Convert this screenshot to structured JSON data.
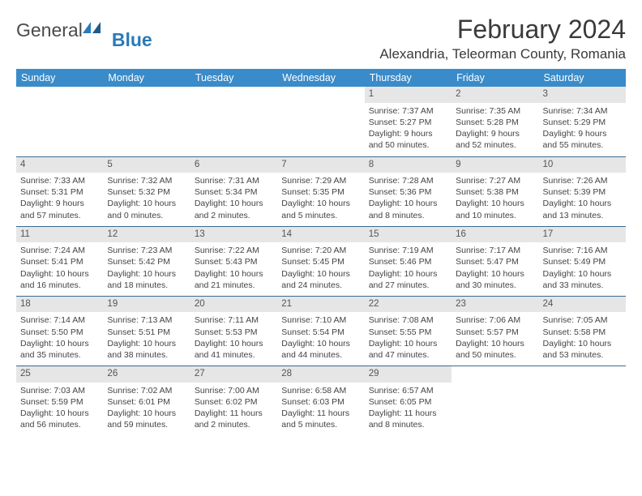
{
  "brand": {
    "part1": "General",
    "part2": "Blue"
  },
  "title": "February 2024",
  "location": "Alexandria, Teleorman County, Romania",
  "colors": {
    "header_bg": "#3a8bc9",
    "header_text": "#ffffff",
    "daynum_bg": "#e6e6e6",
    "row_border": "#3a6a92",
    "logo_blue": "#2a7ab8",
    "body_text": "#3a3a3a"
  },
  "weekdays": [
    "Sunday",
    "Monday",
    "Tuesday",
    "Wednesday",
    "Thursday",
    "Friday",
    "Saturday"
  ],
  "weeks": [
    [
      null,
      null,
      null,
      null,
      {
        "n": "1",
        "sr": "Sunrise: 7:37 AM",
        "ss": "Sunset: 5:27 PM",
        "dl": "Daylight: 9 hours and 50 minutes."
      },
      {
        "n": "2",
        "sr": "Sunrise: 7:35 AM",
        "ss": "Sunset: 5:28 PM",
        "dl": "Daylight: 9 hours and 52 minutes."
      },
      {
        "n": "3",
        "sr": "Sunrise: 7:34 AM",
        "ss": "Sunset: 5:29 PM",
        "dl": "Daylight: 9 hours and 55 minutes."
      }
    ],
    [
      {
        "n": "4",
        "sr": "Sunrise: 7:33 AM",
        "ss": "Sunset: 5:31 PM",
        "dl": "Daylight: 9 hours and 57 minutes."
      },
      {
        "n": "5",
        "sr": "Sunrise: 7:32 AM",
        "ss": "Sunset: 5:32 PM",
        "dl": "Daylight: 10 hours and 0 minutes."
      },
      {
        "n": "6",
        "sr": "Sunrise: 7:31 AM",
        "ss": "Sunset: 5:34 PM",
        "dl": "Daylight: 10 hours and 2 minutes."
      },
      {
        "n": "7",
        "sr": "Sunrise: 7:29 AM",
        "ss": "Sunset: 5:35 PM",
        "dl": "Daylight: 10 hours and 5 minutes."
      },
      {
        "n": "8",
        "sr": "Sunrise: 7:28 AM",
        "ss": "Sunset: 5:36 PM",
        "dl": "Daylight: 10 hours and 8 minutes."
      },
      {
        "n": "9",
        "sr": "Sunrise: 7:27 AM",
        "ss": "Sunset: 5:38 PM",
        "dl": "Daylight: 10 hours and 10 minutes."
      },
      {
        "n": "10",
        "sr": "Sunrise: 7:26 AM",
        "ss": "Sunset: 5:39 PM",
        "dl": "Daylight: 10 hours and 13 minutes."
      }
    ],
    [
      {
        "n": "11",
        "sr": "Sunrise: 7:24 AM",
        "ss": "Sunset: 5:41 PM",
        "dl": "Daylight: 10 hours and 16 minutes."
      },
      {
        "n": "12",
        "sr": "Sunrise: 7:23 AM",
        "ss": "Sunset: 5:42 PM",
        "dl": "Daylight: 10 hours and 18 minutes."
      },
      {
        "n": "13",
        "sr": "Sunrise: 7:22 AM",
        "ss": "Sunset: 5:43 PM",
        "dl": "Daylight: 10 hours and 21 minutes."
      },
      {
        "n": "14",
        "sr": "Sunrise: 7:20 AM",
        "ss": "Sunset: 5:45 PM",
        "dl": "Daylight: 10 hours and 24 minutes."
      },
      {
        "n": "15",
        "sr": "Sunrise: 7:19 AM",
        "ss": "Sunset: 5:46 PM",
        "dl": "Daylight: 10 hours and 27 minutes."
      },
      {
        "n": "16",
        "sr": "Sunrise: 7:17 AM",
        "ss": "Sunset: 5:47 PM",
        "dl": "Daylight: 10 hours and 30 minutes."
      },
      {
        "n": "17",
        "sr": "Sunrise: 7:16 AM",
        "ss": "Sunset: 5:49 PM",
        "dl": "Daylight: 10 hours and 33 minutes."
      }
    ],
    [
      {
        "n": "18",
        "sr": "Sunrise: 7:14 AM",
        "ss": "Sunset: 5:50 PM",
        "dl": "Daylight: 10 hours and 35 minutes."
      },
      {
        "n": "19",
        "sr": "Sunrise: 7:13 AM",
        "ss": "Sunset: 5:51 PM",
        "dl": "Daylight: 10 hours and 38 minutes."
      },
      {
        "n": "20",
        "sr": "Sunrise: 7:11 AM",
        "ss": "Sunset: 5:53 PM",
        "dl": "Daylight: 10 hours and 41 minutes."
      },
      {
        "n": "21",
        "sr": "Sunrise: 7:10 AM",
        "ss": "Sunset: 5:54 PM",
        "dl": "Daylight: 10 hours and 44 minutes."
      },
      {
        "n": "22",
        "sr": "Sunrise: 7:08 AM",
        "ss": "Sunset: 5:55 PM",
        "dl": "Daylight: 10 hours and 47 minutes."
      },
      {
        "n": "23",
        "sr": "Sunrise: 7:06 AM",
        "ss": "Sunset: 5:57 PM",
        "dl": "Daylight: 10 hours and 50 minutes."
      },
      {
        "n": "24",
        "sr": "Sunrise: 7:05 AM",
        "ss": "Sunset: 5:58 PM",
        "dl": "Daylight: 10 hours and 53 minutes."
      }
    ],
    [
      {
        "n": "25",
        "sr": "Sunrise: 7:03 AM",
        "ss": "Sunset: 5:59 PM",
        "dl": "Daylight: 10 hours and 56 minutes."
      },
      {
        "n": "26",
        "sr": "Sunrise: 7:02 AM",
        "ss": "Sunset: 6:01 PM",
        "dl": "Daylight: 10 hours and 59 minutes."
      },
      {
        "n": "27",
        "sr": "Sunrise: 7:00 AM",
        "ss": "Sunset: 6:02 PM",
        "dl": "Daylight: 11 hours and 2 minutes."
      },
      {
        "n": "28",
        "sr": "Sunrise: 6:58 AM",
        "ss": "Sunset: 6:03 PM",
        "dl": "Daylight: 11 hours and 5 minutes."
      },
      {
        "n": "29",
        "sr": "Sunrise: 6:57 AM",
        "ss": "Sunset: 6:05 PM",
        "dl": "Daylight: 11 hours and 8 minutes."
      },
      null,
      null
    ]
  ]
}
